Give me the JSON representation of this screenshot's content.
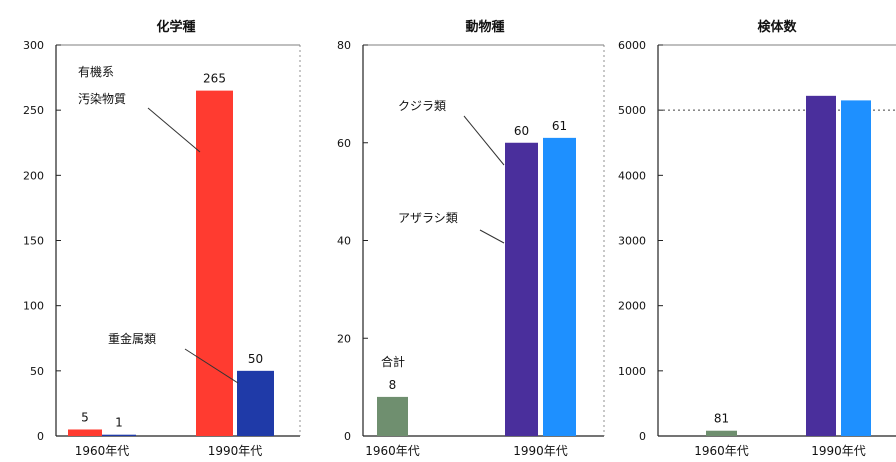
{
  "chart_data": [
    {
      "type": "bar",
      "title": "化学種",
      "xlabel": "",
      "ylabel": "",
      "ylim": [
        0,
        300
      ],
      "yticks": [
        0,
        50,
        100,
        150,
        200,
        250,
        300
      ],
      "categories": [
        "1960年代",
        "1990年代"
      ],
      "grid": false,
      "series": [
        {
          "name": "有機系汚染物質",
          "color": "#ff3b30",
          "values": [
            5,
            265
          ],
          "labels": [
            "5",
            "265"
          ]
        },
        {
          "name": "重金属類",
          "color": "#1f3aa8",
          "values": [
            1,
            50
          ],
          "labels": [
            "1",
            "50"
          ]
        }
      ],
      "annotations": [
        {
          "text": "有機系",
          "series": 0,
          "category": 1
        },
        {
          "text": "汚染物質",
          "series": 0,
          "category": 1
        },
        {
          "text": "重金属類",
          "series": 1,
          "category": 1
        }
      ]
    },
    {
      "type": "bar",
      "title": "動物種",
      "xlabel": "",
      "ylabel": "",
      "ylim": [
        0,
        80
      ],
      "yticks": [
        0,
        20,
        40,
        60,
        80
      ],
      "categories": [
        "1960年代",
        "1990年代"
      ],
      "grid": false,
      "series": [
        {
          "name": "合計",
          "color": "#6f8f6f",
          "values": [
            8,
            null
          ],
          "labels": [
            "8",
            ""
          ]
        },
        {
          "name": "クジラ類",
          "color": "#4a2f9c",
          "values": [
            null,
            60
          ],
          "labels": [
            "",
            "60"
          ]
        },
        {
          "name": "アザラシ類",
          "color": "#1e90ff",
          "values": [
            null,
            61
          ],
          "labels": [
            "",
            "61"
          ]
        }
      ],
      "annotations": [
        {
          "text": "合計",
          "series": 0,
          "category": 0
        },
        {
          "text": "クジラ類",
          "series": 1,
          "category": 1
        },
        {
          "text": "アザラシ類",
          "series": 2,
          "category": 1
        }
      ]
    },
    {
      "type": "bar",
      "title": "検体数",
      "xlabel": "",
      "ylabel": "",
      "ylim": [
        0,
        6000
      ],
      "yticks": [
        0,
        1000,
        2000,
        3000,
        4000,
        5000,
        6000
      ],
      "categories": [
        "1960年代",
        "1990年代"
      ],
      "grid": false,
      "reference_line": 5000,
      "series": [
        {
          "name": "",
          "color": "#6f8f6f",
          "values": [
            81,
            null
          ],
          "labels": [
            "81",
            ""
          ]
        },
        {
          "name": "",
          "color": "#4a2f9c",
          "values": [
            null,
            5220
          ],
          "labels": [
            "",
            ""
          ]
        },
        {
          "name": "",
          "color": "#1e90ff",
          "values": [
            null,
            5150
          ],
          "labels": [
            "",
            ""
          ]
        }
      ]
    }
  ]
}
